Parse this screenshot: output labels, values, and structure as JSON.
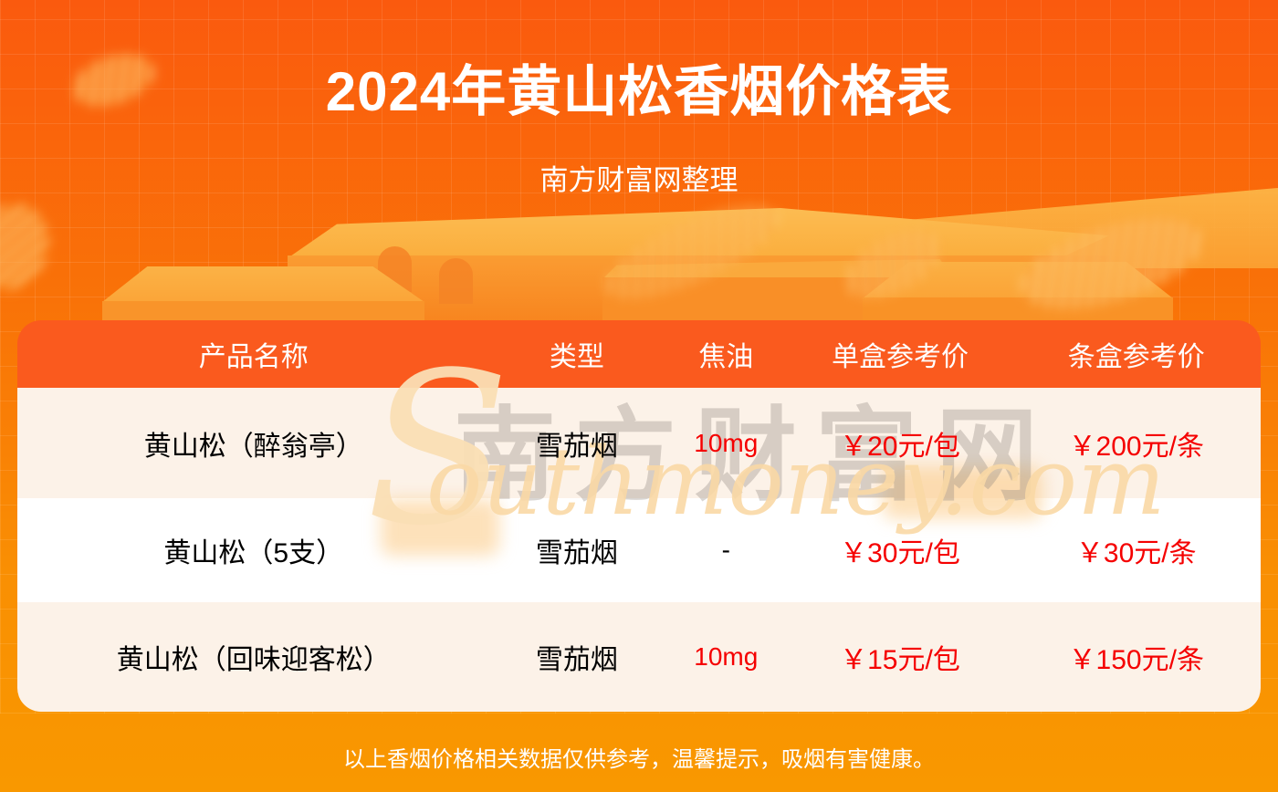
{
  "chart_data": {
    "type": "table",
    "title": "2024年黄山松香烟价格表",
    "subtitle": "南方财富网整理",
    "columns": [
      "产品名称",
      "类型",
      "焦油",
      "单盒参考价",
      "条盒参考价"
    ],
    "rows": [
      [
        "黄山松（醉翁亭）",
        "雪茄烟",
        "10mg",
        "￥20元/包",
        "￥200元/条"
      ],
      [
        "黄山松（5支）",
        "雪茄烟",
        "-",
        "￥30元/包",
        "￥30元/条"
      ],
      [
        "黄山松（回味迎客松）",
        "雪茄烟",
        "10mg",
        "￥15元/包",
        "￥150元/条"
      ]
    ],
    "note": "以上香烟价格相关数据仅供参考，温馨提示，吸烟有害健康。",
    "layout_hints": "header row red-orange with white text; body rows alternate cream/white; tar and price values in red"
  },
  "watermark": {
    "initial": "S",
    "script": "outhmoney.com",
    "cn": "南方财富网"
  },
  "colors": {
    "background_top": "#FA5A0E",
    "background_bottom": "#F99800",
    "header_bar": "#FA5A1E",
    "row_cream": "#FCF2E8",
    "row_white": "#FFFFFF",
    "price_red": "#F50000",
    "text_white": "#FFFFFF",
    "text_black": "#000000",
    "podium_light": "#FBB449"
  }
}
